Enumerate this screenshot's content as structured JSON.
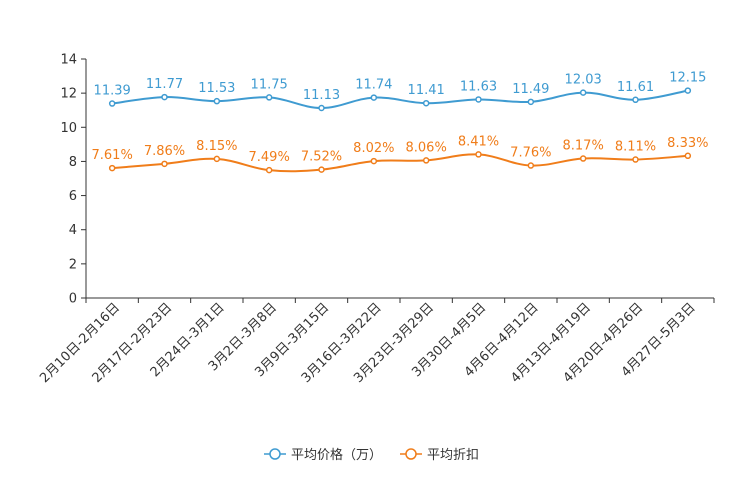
{
  "chart_data": {
    "type": "line",
    "categories": [
      "2月10日-2月16日",
      "2月17日-2月23日",
      "2月24日-3月1日",
      "3月2日-3月8日",
      "3月9日-3月15日",
      "3月16日-3月22日",
      "3月23日-3月29日",
      "3月30日-4月5日",
      "4月6日-4月12日",
      "4月13日-4月19日",
      "4月20日-4月26日",
      "4月27日-5月3日"
    ],
    "ylim": [
      0,
      14
    ],
    "yticks": [
      0,
      2,
      4,
      6,
      8,
      10,
      12,
      14
    ],
    "ytick_labels": [
      "0",
      "2",
      "4",
      "6",
      "8",
      "10",
      "12",
      "14"
    ],
    "series": [
      {
        "name": "平均价格（万）",
        "color": "#3f9bd1",
        "values": [
          11.39,
          11.77,
          11.53,
          11.75,
          11.13,
          11.74,
          11.41,
          11.63,
          11.49,
          12.03,
          11.61,
          12.15
        ],
        "labels": [
          "11.39",
          "11.77",
          "11.53",
          "11.75",
          "11.13",
          "11.74",
          "11.41",
          "11.63",
          "11.49",
          "12.03",
          "11.61",
          "12.15"
        ]
      },
      {
        "name": "平均折扣",
        "color": "#f07d1a",
        "values": [
          7.61,
          7.86,
          8.15,
          7.49,
          7.52,
          8.02,
          8.06,
          8.41,
          7.76,
          8.17,
          8.11,
          8.33
        ],
        "labels": [
          "7.61%",
          "7.86%",
          "8.15%",
          "7.49%",
          "7.52%",
          "8.02%",
          "8.06%",
          "8.41%",
          "7.76%",
          "8.17%",
          "8.11%",
          "8.33%"
        ]
      }
    ],
    "legend_position": "bottom-center"
  }
}
